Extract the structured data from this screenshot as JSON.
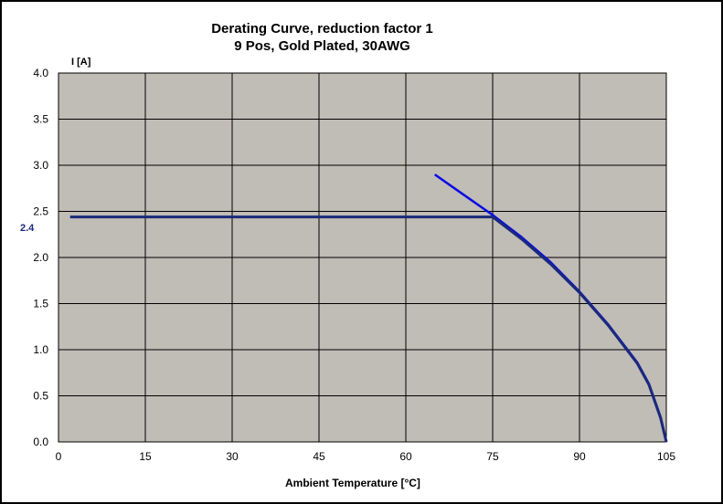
{
  "chart_data": {
    "type": "line",
    "title": "Derating Curve, reduction factor 1",
    "subtitle": "9 Pos, Gold Plated, 30AWG",
    "xlabel": "Ambient Temperature [°C]",
    "ylabel": "I [A]",
    "xlim": [
      0,
      105
    ],
    "ylim": [
      0,
      4.0
    ],
    "x_ticks": [
      "0",
      "15",
      "30",
      "45",
      "60",
      "75",
      "90",
      "105"
    ],
    "y_ticks": [
      "0.0",
      "0.5",
      "1.0",
      "1.5",
      "2.0",
      "2.5",
      "3.0",
      "3.5",
      "4.0"
    ],
    "grid": true,
    "plot_background": "#c0bcb6",
    "reference_label": "2.4",
    "series": [
      {
        "color": "#0a0ae6",
        "x": [
          65,
          70,
          75,
          80,
          85,
          90,
          95,
          100,
          102,
          104,
          105
        ],
        "y": [
          2.9,
          2.68,
          2.46,
          2.22,
          1.95,
          1.63,
          1.27,
          0.86,
          0.63,
          0.27,
          0.0
        ]
      },
      {
        "color": "#1a2a7a",
        "x": [
          2,
          74,
          75,
          80,
          85,
          90,
          95,
          100,
          102,
          104,
          105
        ],
        "y": [
          2.44,
          2.44,
          2.44,
          2.2,
          1.93,
          1.62,
          1.26,
          0.85,
          0.62,
          0.26,
          0.0
        ]
      }
    ]
  }
}
